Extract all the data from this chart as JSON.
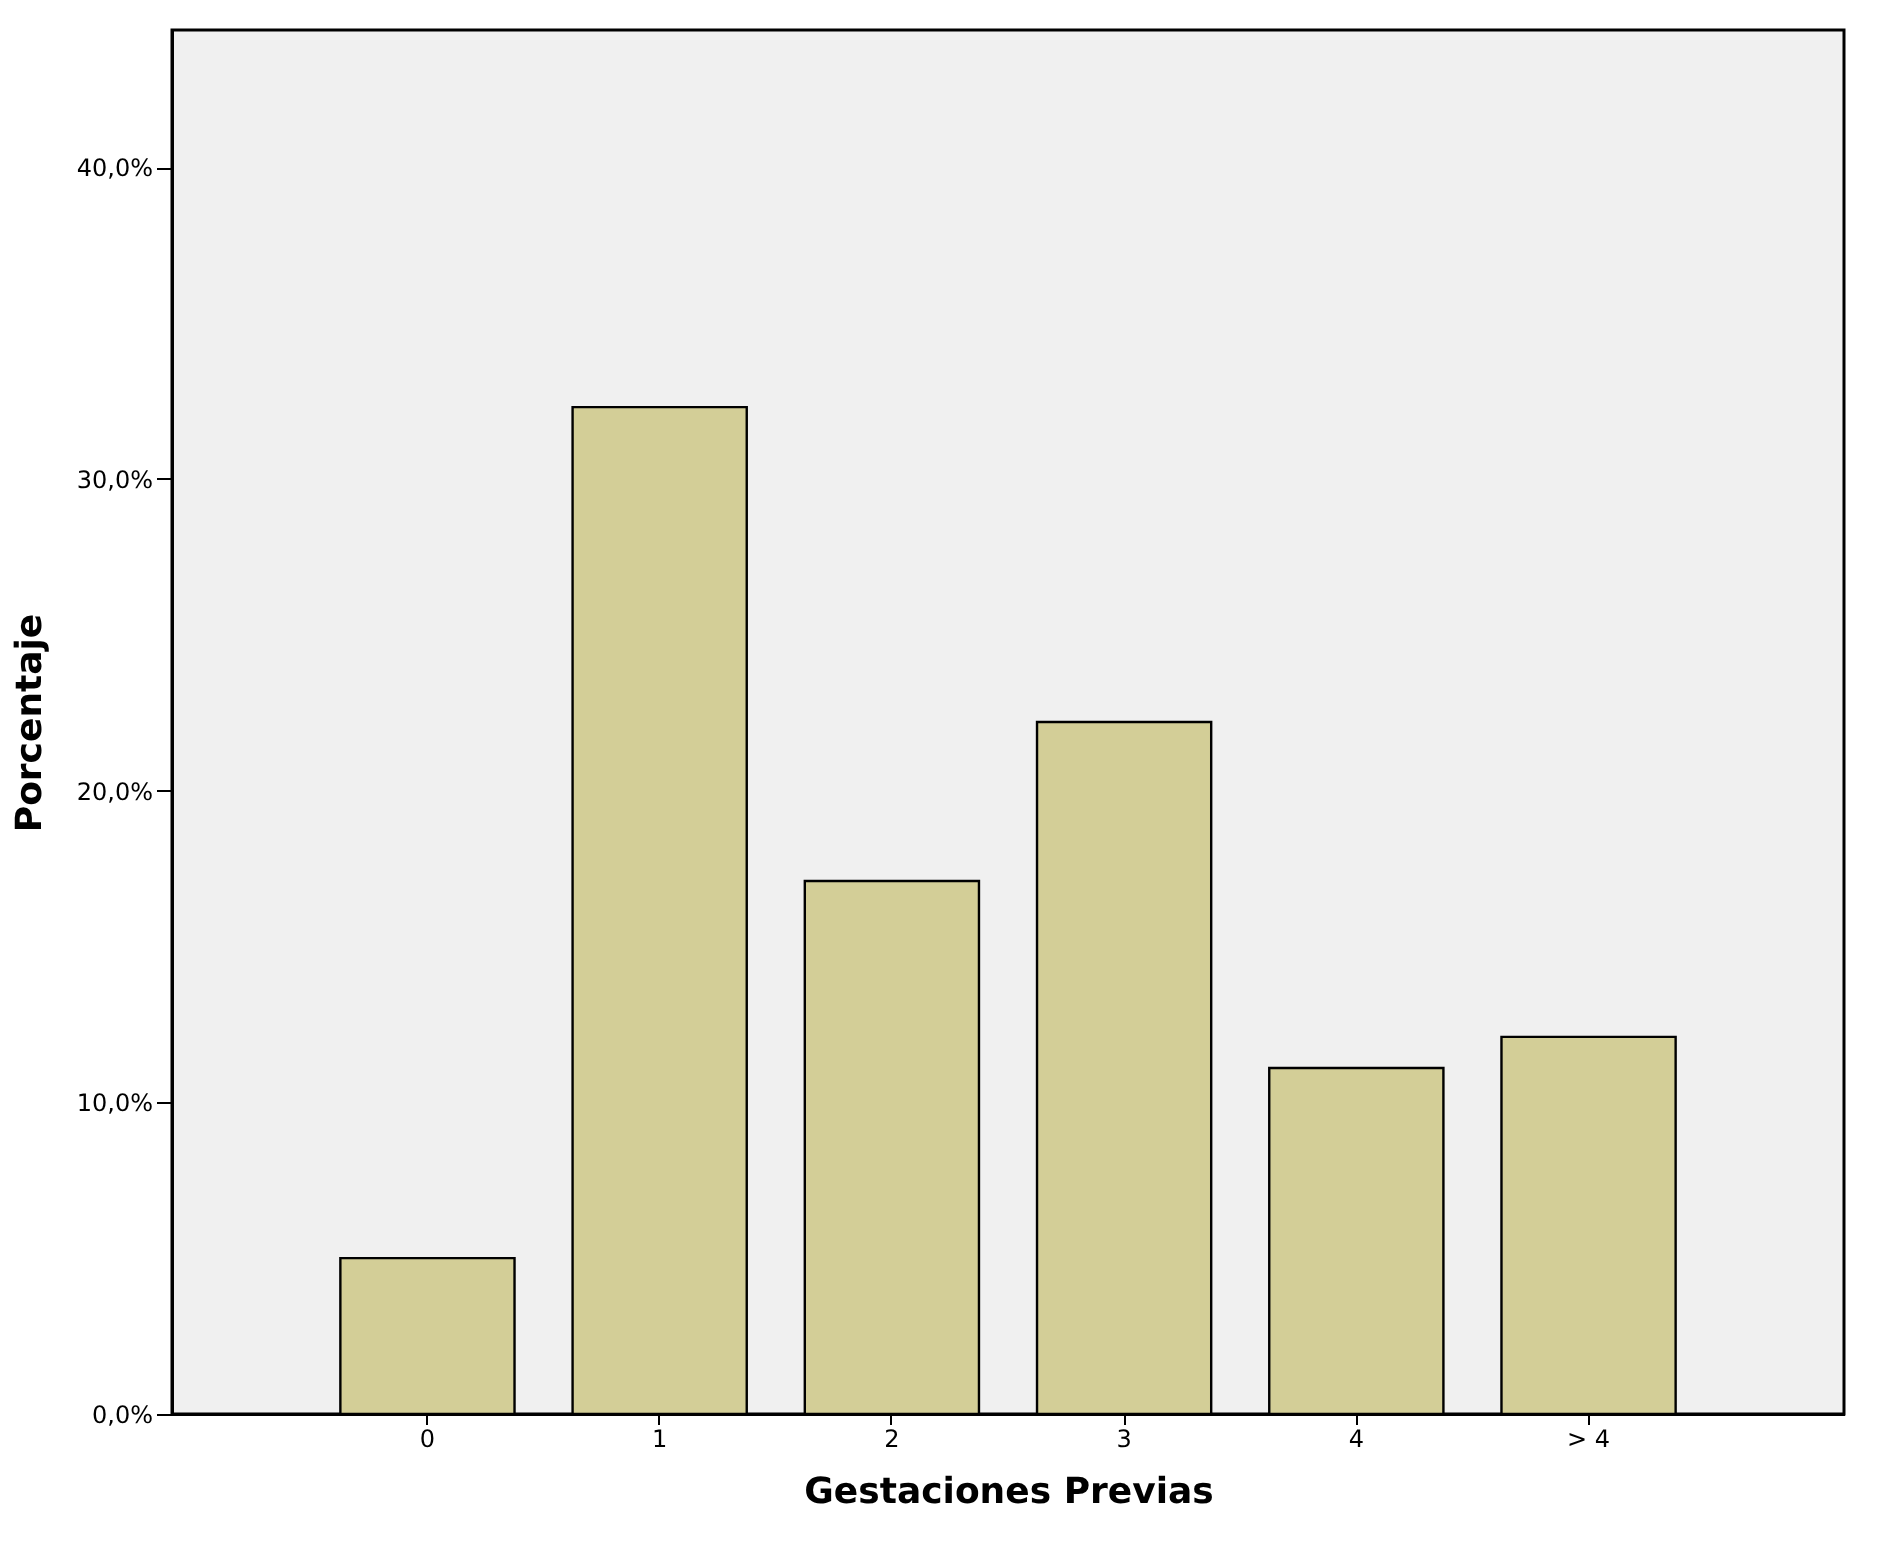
{
  "chart_data": {
    "type": "bar",
    "xlabel": "Gestaciones Previas",
    "ylabel": "Porcentaje",
    "categories": [
      "0",
      "1",
      "2",
      "3",
      "4",
      "> 4"
    ],
    "values": [
      5.0,
      32.3,
      17.1,
      22.2,
      11.1,
      12.1
    ],
    "color": "#d3ce97",
    "ylim": [
      0,
      44.4
    ],
    "yticks": [
      {
        "value": 0,
        "label": "0,0%"
      },
      {
        "value": 10,
        "label": "10,0%"
      },
      {
        "value": 20,
        "label": "20,0%"
      },
      {
        "value": 30,
        "label": "30,0%"
      },
      {
        "value": 40,
        "label": "40,0%"
      }
    ],
    "grid": false
  }
}
